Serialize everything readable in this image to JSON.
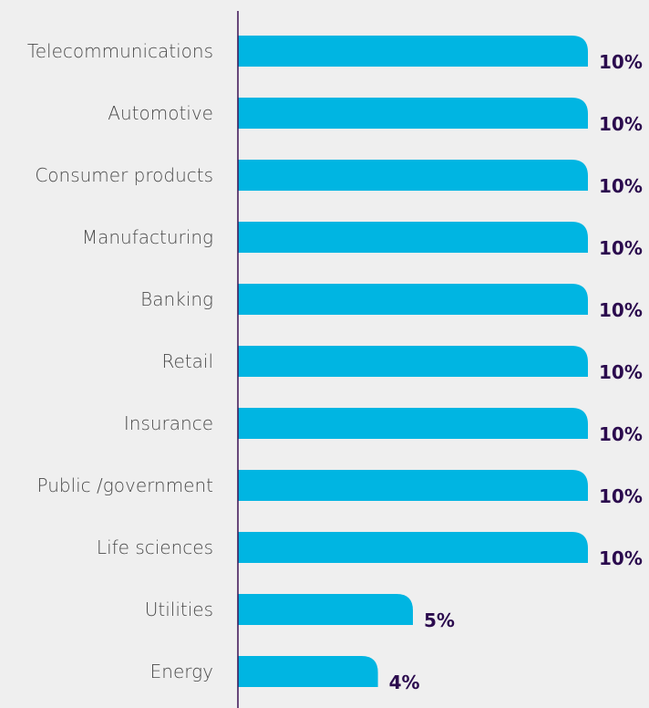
{
  "chart_data": {
    "type": "bar",
    "orientation": "horizontal",
    "categories": [
      "Telecommunications",
      "Automotive",
      "Consumer products",
      "Manufacturing",
      "Banking",
      "Retail",
      "Insurance",
      "Public /government",
      "Life sciences",
      "Utilities",
      "Energy"
    ],
    "values": [
      10,
      10,
      10,
      10,
      10,
      10,
      10,
      10,
      10,
      5,
      4
    ],
    "value_labels": [
      "10%",
      "10%",
      "10%",
      "10%",
      "10%",
      "10%",
      "10%",
      "10%",
      "10%",
      "5%",
      "4%"
    ],
    "xlim": [
      0,
      10
    ],
    "unit": "%",
    "grid": false,
    "legend": "none",
    "colors": {
      "bar": "#00b5e2",
      "axis": "#3c1053",
      "value_label": "#2b0b4e",
      "category_label": "#4a4a4a",
      "background": "#efefef"
    }
  }
}
